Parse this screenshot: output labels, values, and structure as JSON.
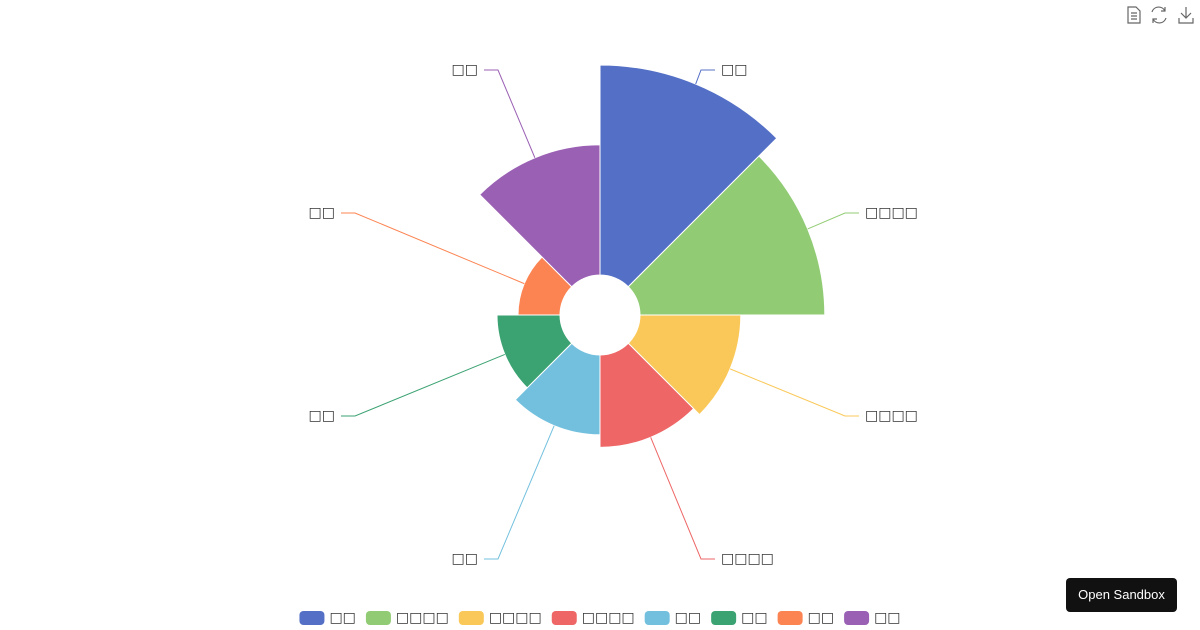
{
  "chart_data": {
    "type": "rose",
    "categories": [
      "□□",
      "□□□□",
      "□□□□",
      "□□□□",
      "□□",
      "□□",
      "□□",
      "□□"
    ],
    "values": [
      50,
      44,
      24,
      22,
      19,
      15,
      10,
      31
    ],
    "colors": [
      "#5470c6",
      "#91cc75",
      "#fac858",
      "#ee6666",
      "#73c0de",
      "#3ba272",
      "#fc8452",
      "#9a60b4"
    ],
    "legend": "bottom"
  },
  "ui": {
    "sandbox_button": "Open Sandbox"
  }
}
